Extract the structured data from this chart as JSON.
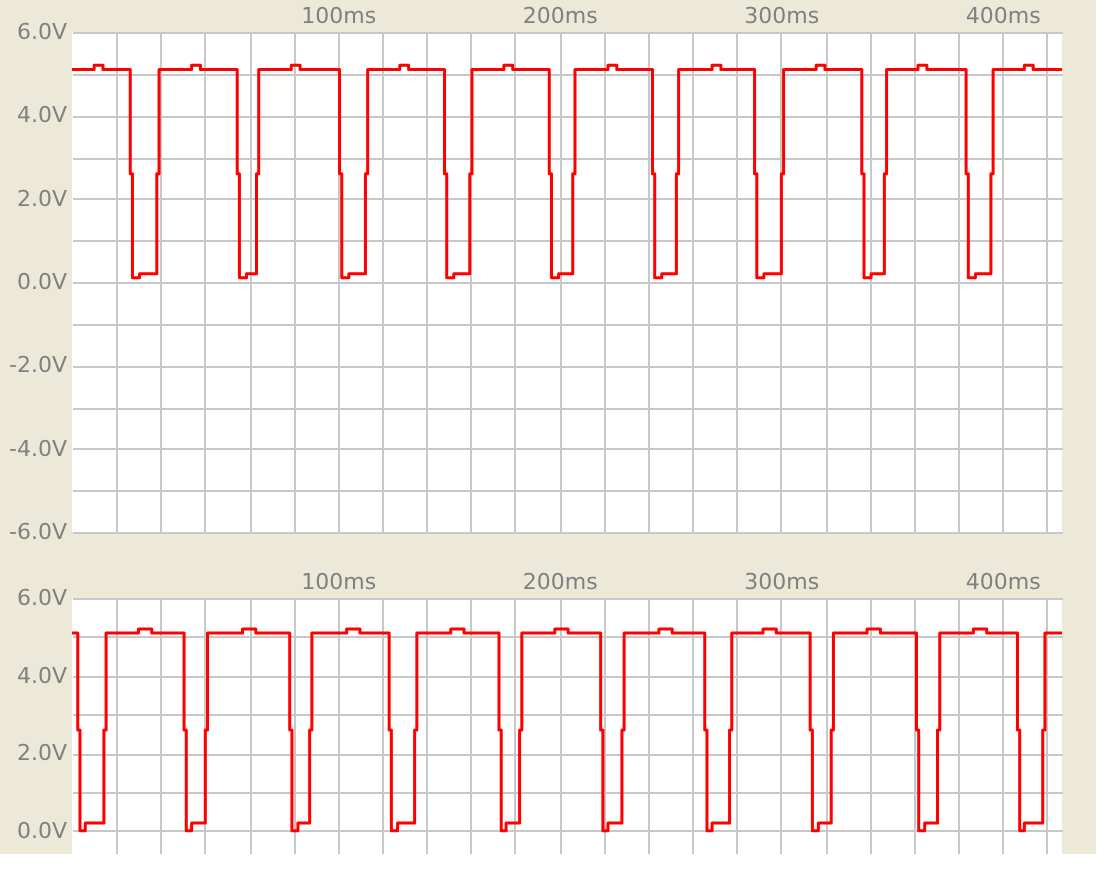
{
  "chart_data": [
    {
      "type": "step",
      "xlim": [
        -20,
        427
      ],
      "ylim": [
        -6,
        6
      ],
      "xticks": [
        {
          "value": 0,
          "label": null
        },
        {
          "value": 20,
          "label": null
        },
        {
          "value": 40,
          "label": null
        },
        {
          "value": 60,
          "label": null
        },
        {
          "value": 80,
          "label": null
        },
        {
          "value": 100,
          "label": "100ms"
        },
        {
          "value": 120,
          "label": null
        },
        {
          "value": 140,
          "label": null
        },
        {
          "value": 160,
          "label": null
        },
        {
          "value": 180,
          "label": null
        },
        {
          "value": 200,
          "label": "200ms"
        },
        {
          "value": 220,
          "label": null
        },
        {
          "value": 240,
          "label": null
        },
        {
          "value": 260,
          "label": null
        },
        {
          "value": 280,
          "label": null
        },
        {
          "value": 300,
          "label": "300ms"
        },
        {
          "value": 320,
          "label": null
        },
        {
          "value": 340,
          "label": null
        },
        {
          "value": 360,
          "label": null
        },
        {
          "value": 380,
          "label": null
        },
        {
          "value": 400,
          "label": "400ms"
        },
        {
          "value": 420,
          "label": null
        }
      ],
      "yticks": [
        {
          "value": -6,
          "label": "-6.0V"
        },
        {
          "value": -5,
          "label": null
        },
        {
          "value": -4,
          "label": "-4.0V"
        },
        {
          "value": -3,
          "label": null
        },
        {
          "value": -2,
          "label": "-2.0V"
        },
        {
          "value": -1,
          "label": null
        },
        {
          "value": 0,
          "label": "0.0V"
        },
        {
          "value": 1,
          "label": null
        },
        {
          "value": 2,
          "label": "2.0V"
        },
        {
          "value": 3,
          "label": null
        },
        {
          "value": 4,
          "label": "4.0V"
        },
        {
          "value": 5,
          "label": null
        },
        {
          "value": 6,
          "label": "6.0V"
        }
      ],
      "grid": true,
      "series": [
        {
          "color": "#ff0000",
          "x": [
            -20,
            -10,
            -6,
            6.3,
            7.3,
            10.5,
            18.3,
            19.3,
            34,
            38,
            54.6,
            55.6,
            58.8,
            63.3,
            64.3,
            79,
            83,
            100.8,
            101.8,
            105,
            112.5,
            113.5,
            128,
            132,
            148.2,
            149.2,
            152.4,
            159.6,
            160.6,
            175,
            179,
            195.5,
            196.5,
            199.7,
            206.1,
            207.1,
            222,
            226,
            242.1,
            243.1,
            246.3,
            252.9,
            253.9,
            269,
            273,
            288.2,
            289.2,
            292.4,
            300.3,
            301.3,
            316,
            320,
            336.6,
            337.6,
            340.8,
            346.8,
            347.8,
            362,
            366,
            383.7,
            384.7,
            387.9,
            394.9,
            395.9,
            410,
            414,
            427
          ],
          "values": [
            5.1,
            5.2,
            5.1,
            2.6,
            0.1,
            0.2,
            2.6,
            5.1,
            5.2,
            5.1,
            2.6,
            0.1,
            0.2,
            2.6,
            5.1,
            5.2,
            5.1,
            2.6,
            0.1,
            0.2,
            2.6,
            5.1,
            5.2,
            5.1,
            2.6,
            0.1,
            0.2,
            2.6,
            5.1,
            5.2,
            5.1,
            2.6,
            0.1,
            0.2,
            2.6,
            5.1,
            5.2,
            5.1,
            2.6,
            0.1,
            0.2,
            2.6,
            5.1,
            5.2,
            5.1,
            2.6,
            0.1,
            0.2,
            2.6,
            5.1,
            5.2,
            5.1,
            2.6,
            0.1,
            0.2,
            2.6,
            5.1,
            5.2,
            5.1,
            2.6,
            0.1,
            0.2,
            2.6,
            5.1,
            5.2,
            5.1,
            5.1
          ]
        }
      ]
    },
    {
      "type": "step",
      "xlim": [
        -20,
        427
      ],
      "ylim": [
        -0.6,
        6
      ],
      "xticks": [
        {
          "value": 0,
          "label": null
        },
        {
          "value": 20,
          "label": null
        },
        {
          "value": 40,
          "label": null
        },
        {
          "value": 60,
          "label": null
        },
        {
          "value": 80,
          "label": null
        },
        {
          "value": 100,
          "label": "100ms"
        },
        {
          "value": 120,
          "label": null
        },
        {
          "value": 140,
          "label": null
        },
        {
          "value": 160,
          "label": null
        },
        {
          "value": 180,
          "label": null
        },
        {
          "value": 200,
          "label": "200ms"
        },
        {
          "value": 220,
          "label": null
        },
        {
          "value": 240,
          "label": null
        },
        {
          "value": 260,
          "label": null
        },
        {
          "value": 280,
          "label": null
        },
        {
          "value": 300,
          "label": "300ms"
        },
        {
          "value": 320,
          "label": null
        },
        {
          "value": 340,
          "label": null
        },
        {
          "value": 360,
          "label": null
        },
        {
          "value": 380,
          "label": null
        },
        {
          "value": 400,
          "label": "400ms"
        },
        {
          "value": 420,
          "label": null
        }
      ],
      "yticks": [
        {
          "value": 0,
          "label": "0.0V"
        },
        {
          "value": 1,
          "label": null
        },
        {
          "value": 2,
          "label": "2.0V"
        },
        {
          "value": 3,
          "label": null
        },
        {
          "value": 4,
          "label": "4.0V"
        },
        {
          "value": 5,
          "label": null
        },
        {
          "value": 6,
          "label": "6.0V"
        }
      ],
      "grid": true,
      "series": [
        {
          "color": "#ff0000",
          "x": [
            -20,
            -17.4,
            -16.4,
            -14,
            -5.6,
            -4.6,
            10,
            16,
            30.6,
            31.6,
            34,
            40.2,
            41.2,
            57,
            63,
            78.3,
            79.3,
            82,
            87.3,
            88.3,
            104,
            110,
            123.2,
            124.2,
            127,
            134.7,
            135.7,
            151,
            157,
            172.8,
            173.8,
            176,
            182.1,
            183.1,
            198,
            204,
            218.7,
            219.7,
            222,
            228.3,
            229.3,
            245,
            251,
            265.7,
            266.7,
            269,
            276.9,
            277.9,
            292,
            298,
            313.3,
            314.3,
            317,
            322.8,
            323.8,
            339,
            345,
            361.3,
            362.3,
            365,
            370.8,
            371.8,
            387,
            393,
            406.9,
            407.9,
            410,
            418.3,
            419.3,
            427
          ],
          "values": [
            5.1,
            2.6,
            0.0,
            0.2,
            2.6,
            5.1,
            5.2,
            5.1,
            2.6,
            0.0,
            0.2,
            2.6,
            5.1,
            5.2,
            5.1,
            2.6,
            0.0,
            0.2,
            2.6,
            5.1,
            5.2,
            5.1,
            2.6,
            0.0,
            0.2,
            2.6,
            5.1,
            5.2,
            5.1,
            2.6,
            0.0,
            0.2,
            2.6,
            5.1,
            5.2,
            5.1,
            2.6,
            0.0,
            0.2,
            2.6,
            5.1,
            5.2,
            5.1,
            2.6,
            0.0,
            0.2,
            2.6,
            5.1,
            5.2,
            5.1,
            2.6,
            0.0,
            0.2,
            2.6,
            5.1,
            5.2,
            5.1,
            2.6,
            0.0,
            0.2,
            2.6,
            5.1,
            5.2,
            5.1,
            2.6,
            0.0,
            0.2,
            2.6,
            5.1,
            5.1
          ]
        }
      ]
    }
  ]
}
